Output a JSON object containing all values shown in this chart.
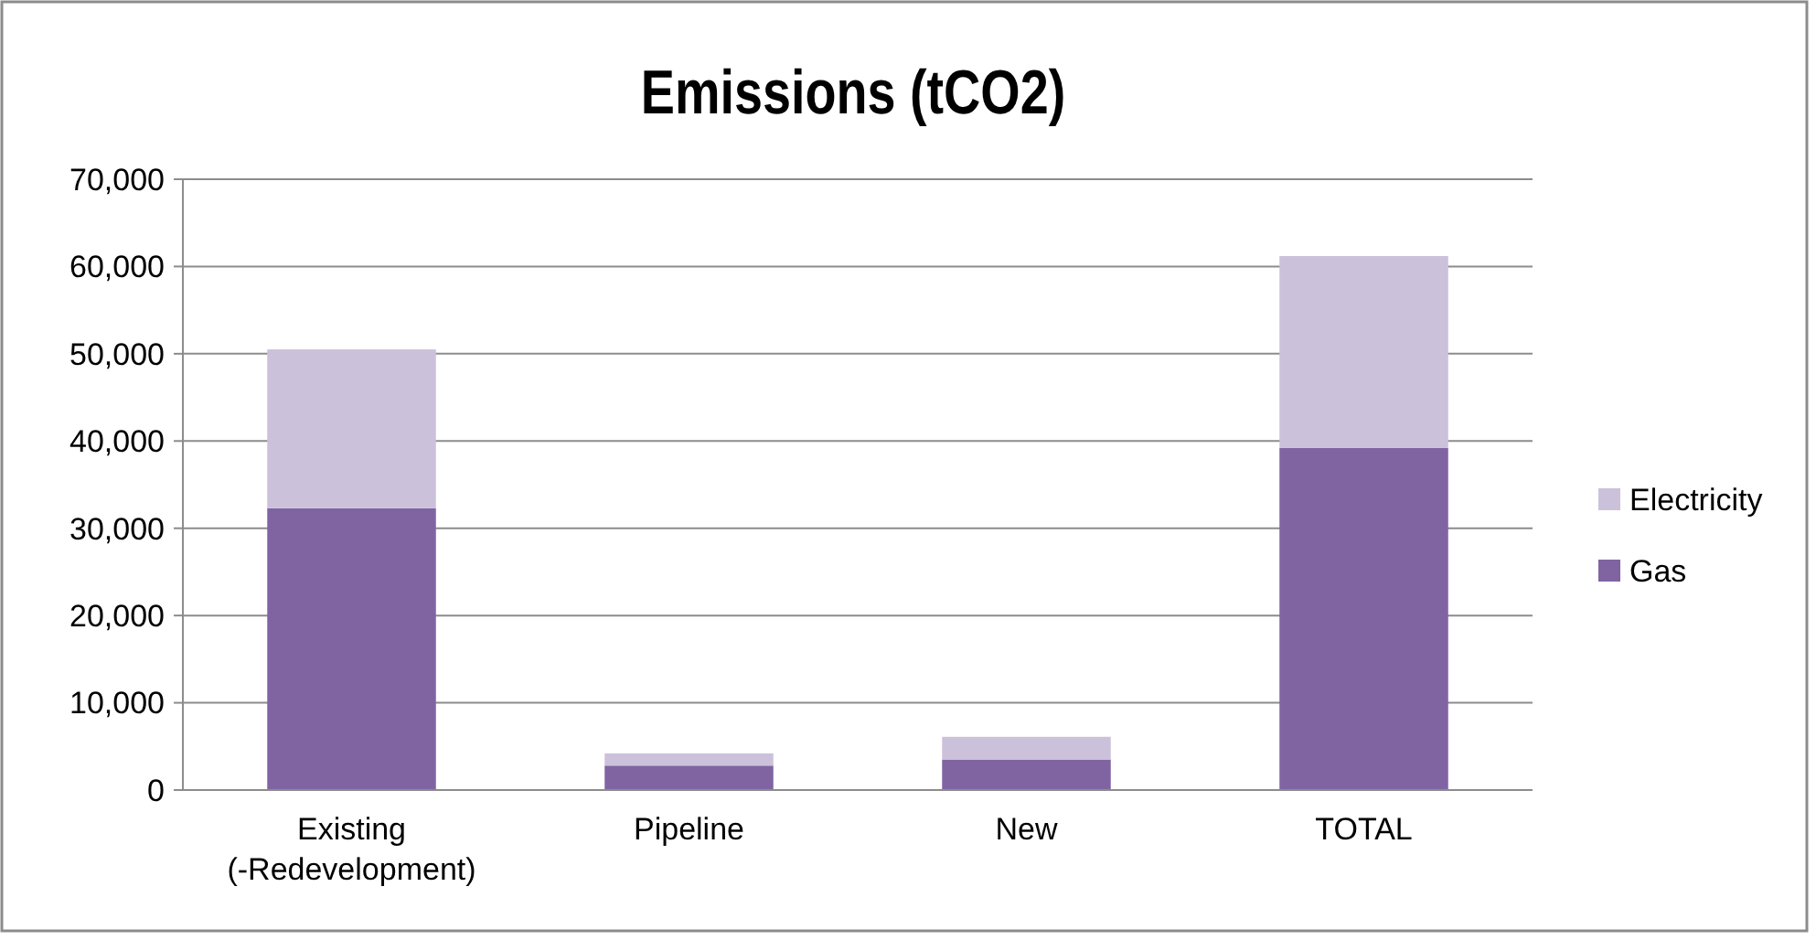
{
  "chart_data": {
    "type": "bar",
    "title": "Emissions (tCO2)",
    "stacked": true,
    "categories": [
      "Existing\n(-Redevelopment)",
      "Pipeline",
      "New",
      "TOTAL"
    ],
    "series": [
      {
        "name": "Gas",
        "color": "#8064a2",
        "values": [
          32300,
          2800,
          3500,
          39200
        ]
      },
      {
        "name": "Electricity",
        "color": "#ccc1da",
        "values": [
          18200,
          1400,
          2600,
          22000
        ]
      }
    ],
    "ylim": [
      0,
      70000
    ],
    "yticks": [
      {
        "value": 0,
        "label": "0"
      },
      {
        "value": 10000,
        "label": "10,000"
      },
      {
        "value": 20000,
        "label": "20,000"
      },
      {
        "value": 30000,
        "label": "30,000"
      },
      {
        "value": 40000,
        "label": "40,000"
      },
      {
        "value": 50000,
        "label": "50,000"
      },
      {
        "value": 60000,
        "label": "60,000"
      },
      {
        "value": 70000,
        "label": "70,000"
      }
    ],
    "grid": "y",
    "legend": "right"
  }
}
